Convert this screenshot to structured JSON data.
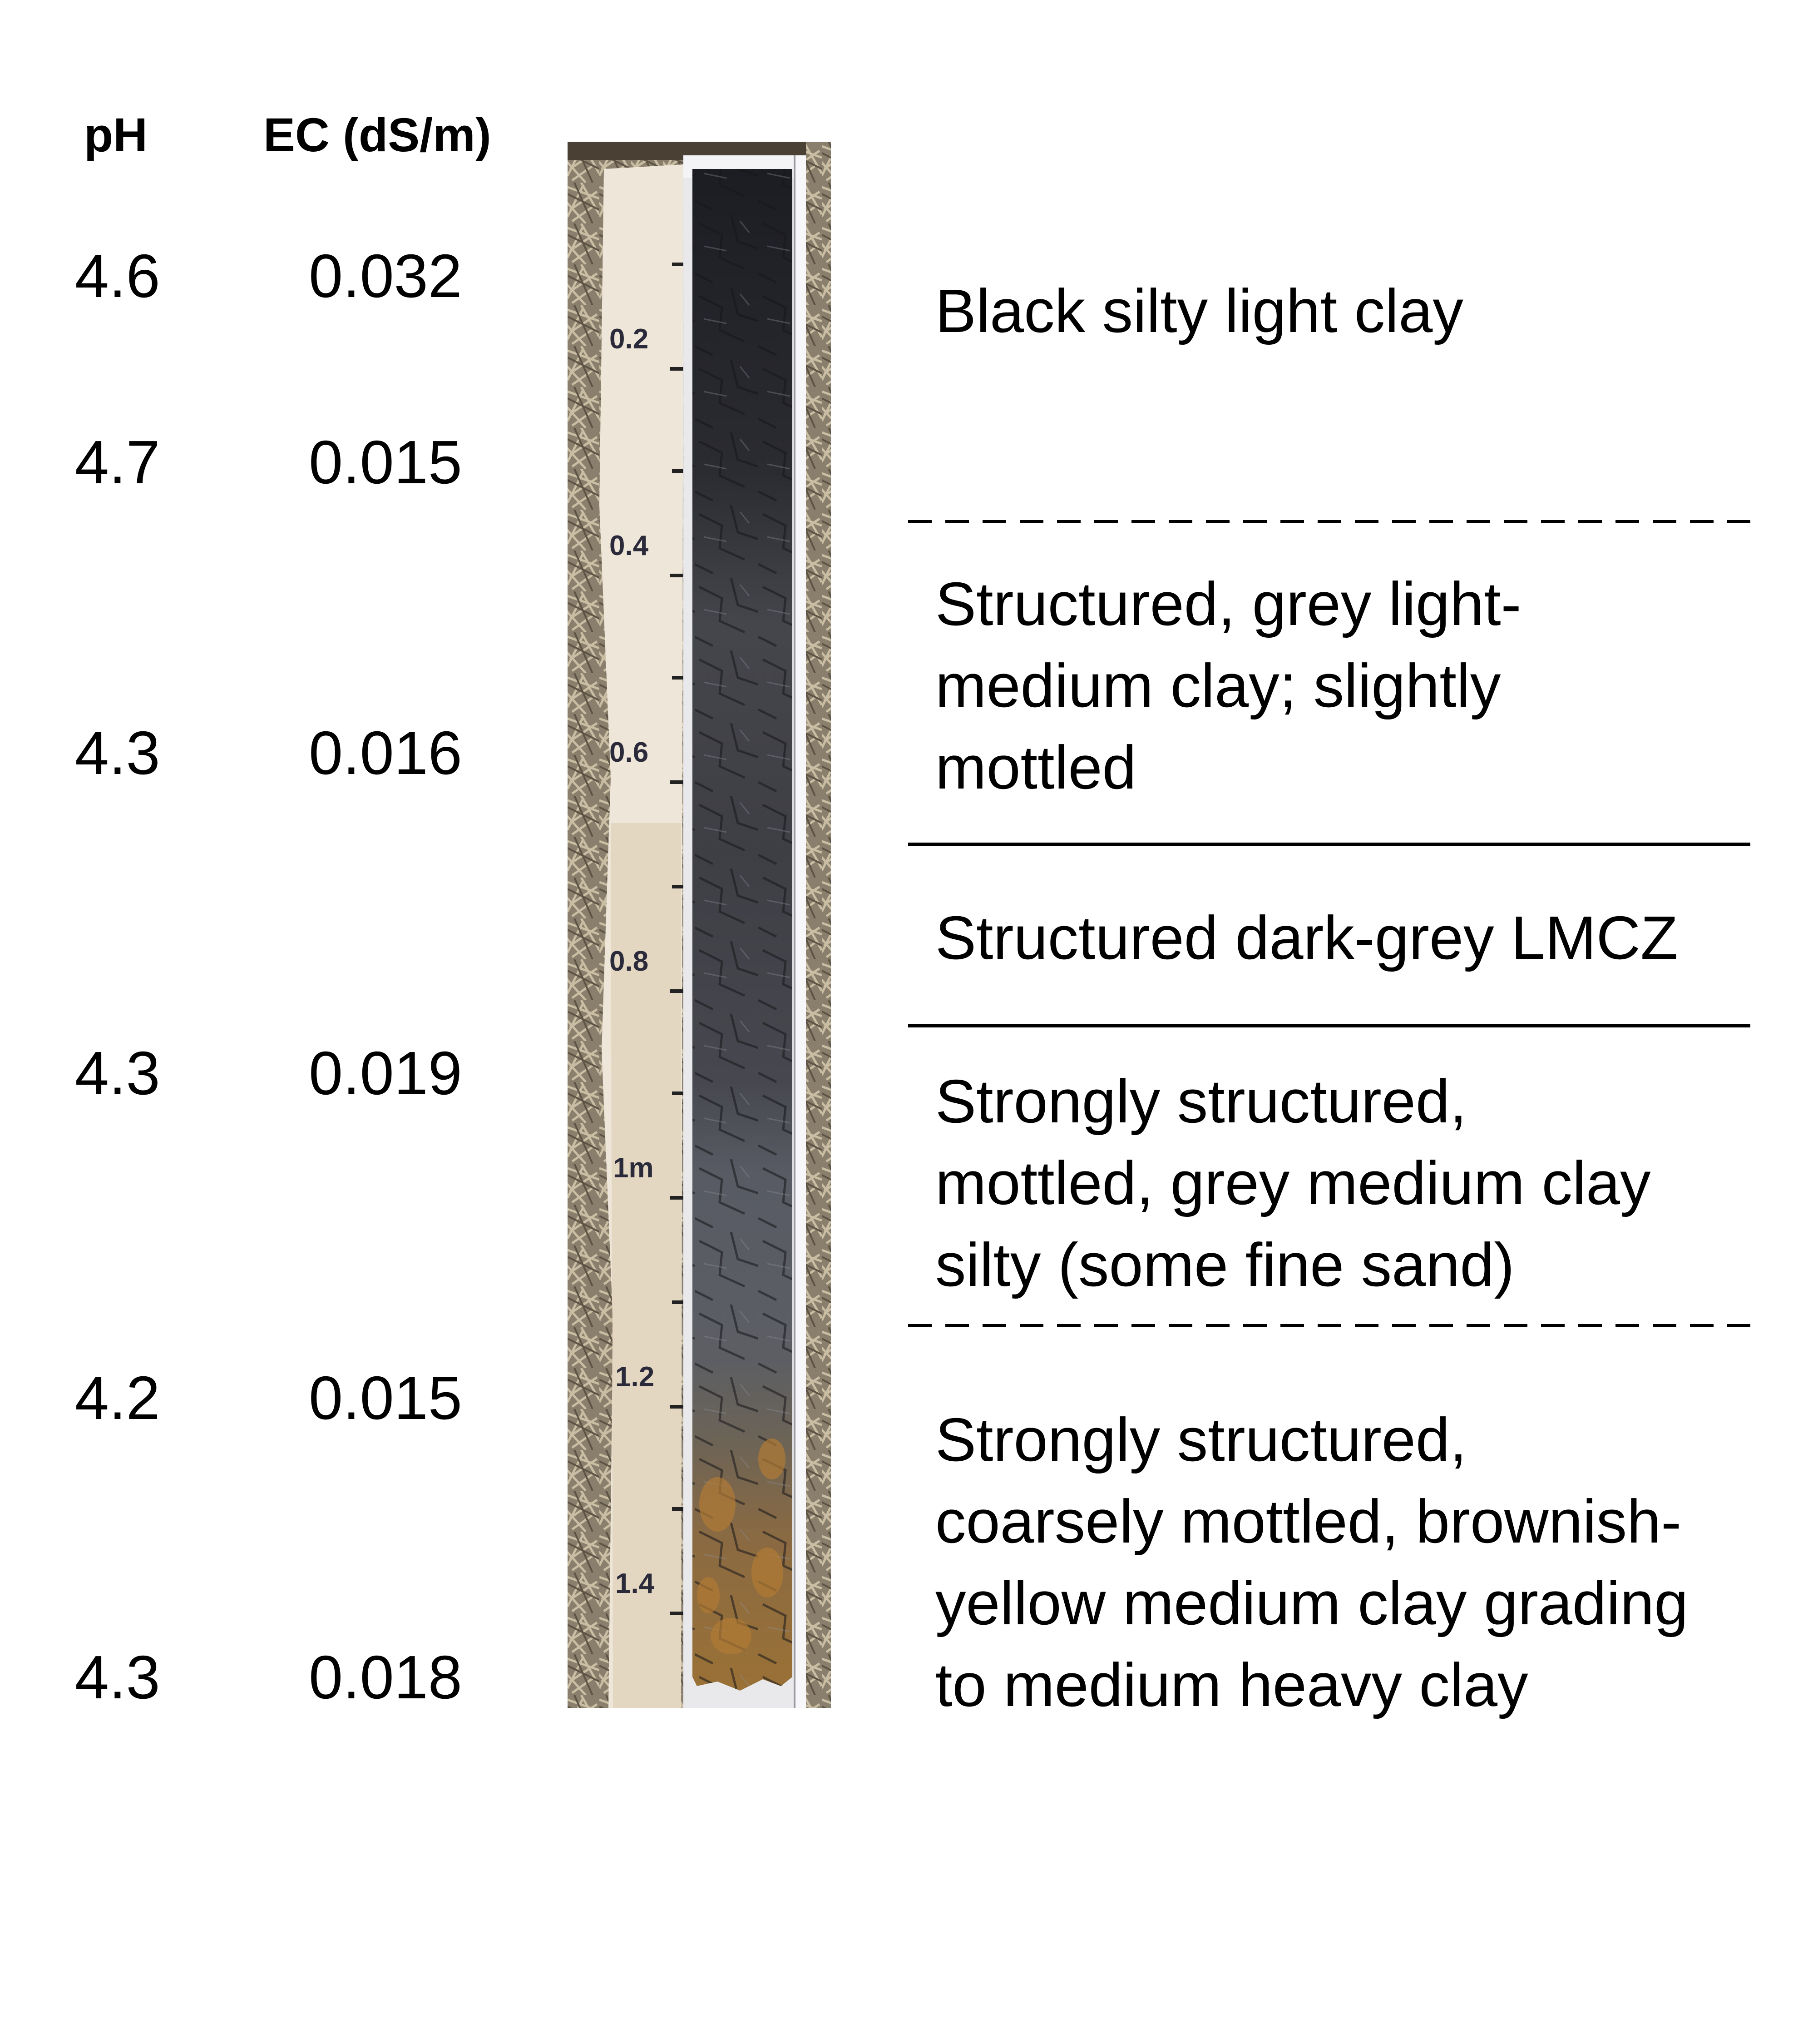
{
  "headers": {
    "ph": "pH",
    "ec": "EC (dS/m)"
  },
  "measurements": [
    {
      "ph": "4.6",
      "ec": "0.032"
    },
    {
      "ph": "4.7",
      "ec": "0.015"
    },
    {
      "ph": "4.3",
      "ec": "0.016"
    },
    {
      "ph": "4.3",
      "ec": "0.019"
    },
    {
      "ph": "4.2",
      "ec": "0.015"
    },
    {
      "ph": "4.3",
      "ec": "0.018"
    }
  ],
  "ruler_labels": [
    "0.2",
    "0.4",
    "0.6",
    "0.8",
    "1m",
    "1.2",
    "1.4"
  ],
  "horizons": [
    {
      "lines": [
        "Black silty light clay"
      ]
    },
    {
      "lines": [
        "Structured, grey light-",
        "medium clay; slightly",
        "mottled"
      ]
    },
    {
      "lines": [
        "Structured dark-grey LMCZ"
      ]
    },
    {
      "lines": [
        "Strongly structured,",
        "mottled, grey medium clay",
        "silty (some fine sand)"
      ]
    },
    {
      "lines": [
        "Strongly structured,",
        "coarsely mottled, brownish-",
        "yellow medium clay grading",
        "to medium heavy clay"
      ]
    }
  ],
  "boundaries": [
    "gradual",
    "clear",
    "clear",
    "gradual"
  ]
}
